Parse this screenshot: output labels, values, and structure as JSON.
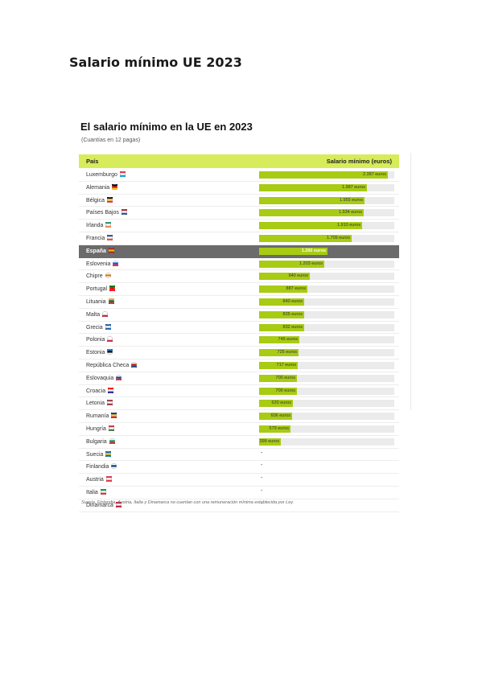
{
  "document": {
    "title": "Salario mínimo UE 2023"
  },
  "chart_data": {
    "type": "bar",
    "orientation": "horizontal",
    "title": "El salario mínimo en la UE en 2023",
    "subtitle": "(Cuantías en 12 pagas)",
    "header": {
      "country": "País",
      "value": "Salario mínimo (euros)"
    },
    "unit": "euros",
    "highlight": "España",
    "colors": {
      "bar": "#a8cb14",
      "header": "#d6ec5a",
      "highlight_row": "#6b6b6b"
    },
    "xlim": [
      0,
      2500
    ],
    "rows": [
      {
        "country": "Luxemburgo",
        "value": 2387,
        "label": "2.387 euros",
        "flag": "lu"
      },
      {
        "country": "Alemania",
        "value": 1987,
        "label": "1.987 euros",
        "flag": "de"
      },
      {
        "country": "Bélgica",
        "value": 1955,
        "label": "1.955 euros",
        "flag": "be"
      },
      {
        "country": "Países Bajos",
        "value": 1934,
        "label": "1.934 euros",
        "flag": "nl"
      },
      {
        "country": "Irlanda",
        "value": 1910,
        "label": "1.910 euros",
        "flag": "ie"
      },
      {
        "country": "Francia",
        "value": 1709,
        "label": "1.709 euros",
        "flag": "fr"
      },
      {
        "country": "España",
        "value": 1260,
        "label": "1.260 euros",
        "flag": "es"
      },
      {
        "country": "Eslovenia",
        "value": 1203,
        "label": "1.203 euros",
        "flag": "si"
      },
      {
        "country": "Chipre",
        "value": 940,
        "label": "940 euros",
        "flag": "cy"
      },
      {
        "country": "Portugal",
        "value": 887,
        "label": "887 euros",
        "flag": "pt"
      },
      {
        "country": "Lituania",
        "value": 840,
        "label": "840 euros",
        "flag": "lt"
      },
      {
        "country": "Malta",
        "value": 835,
        "label": "835 euros",
        "flag": "mt"
      },
      {
        "country": "Grecia",
        "value": 832,
        "label": "832 euros",
        "flag": "gr"
      },
      {
        "country": "Polonia",
        "value": 746,
        "label": "746 euros",
        "flag": "pl"
      },
      {
        "country": "Estonia",
        "value": 725,
        "label": "725 euros",
        "flag": "ee"
      },
      {
        "country": "República Checa",
        "value": 717,
        "label": "717 euros",
        "flag": "cz"
      },
      {
        "country": "Eslovaquia",
        "value": 700,
        "label": "700 euros",
        "flag": "sk"
      },
      {
        "country": "Croacia",
        "value": 700,
        "label": "700 euros",
        "flag": "hr"
      },
      {
        "country": "Letonia",
        "value": 620,
        "label": "620 euros",
        "flag": "lv"
      },
      {
        "country": "Rumanía",
        "value": 606,
        "label": "606 euros",
        "flag": "ro"
      },
      {
        "country": "Hungría",
        "value": 579,
        "label": "579 euros",
        "flag": "hu"
      },
      {
        "country": "Bulgaria",
        "value": 399,
        "label": "399 euros",
        "flag": "bg"
      },
      {
        "country": "Suecia",
        "value": null,
        "label": "-",
        "flag": "se"
      },
      {
        "country": "Finlandia",
        "value": null,
        "label": "-",
        "flag": "fi"
      },
      {
        "country": "Austria",
        "value": null,
        "label": "-",
        "flag": "at"
      },
      {
        "country": "Italia",
        "value": null,
        "label": "-",
        "flag": "it"
      },
      {
        "country": "Dinamarca",
        "value": null,
        "label": "-",
        "flag": "dk"
      }
    ],
    "footnote": "Suecia, Finlandia, Austria, Italia y Dinamarca no cuentan con una remuneración mínima establecida por Ley."
  }
}
